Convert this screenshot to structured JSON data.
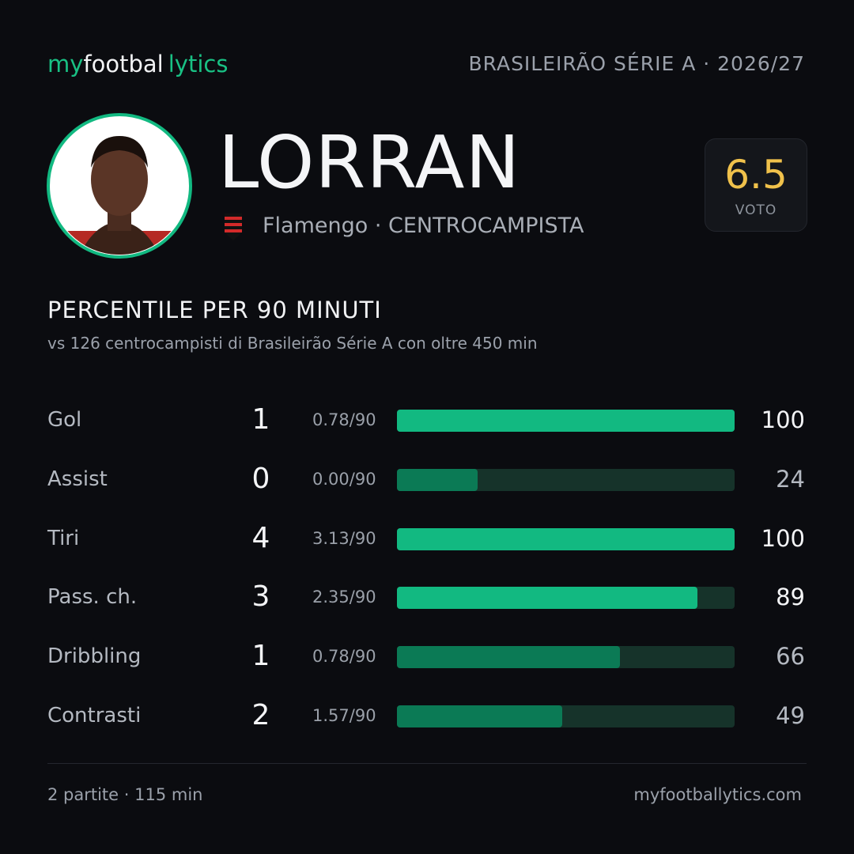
{
  "header": {
    "brand": [
      "my",
      "footbal",
      "lytics"
    ],
    "league": "BRASILEIRÃO SÉRIE A · 2026/27"
  },
  "player": {
    "name": "LORRAN",
    "club_role": "Flamengo · CENTROCAMPISTA",
    "rating": 6.5,
    "rating_label": "VOTO"
  },
  "section": {
    "title": "PERCENTILE PER 90 MINUTI",
    "subtitle": "vs 126 centrocampisti di Brasileirão Série A con oltre 450 min"
  },
  "stats": {
    "xlim": [
      0,
      100
    ],
    "track_color": "#16332a",
    "rows": [
      {
        "label": "Gol",
        "total": 1,
        "per90": "0.78/90",
        "percentile": 100,
        "color": "#12b981"
      },
      {
        "label": "Assist",
        "total": 0,
        "per90": "0.00/90",
        "percentile": 24,
        "color": "#0b7a55"
      },
      {
        "label": "Tiri",
        "total": 4,
        "per90": "3.13/90",
        "percentile": 100,
        "color": "#12b981"
      },
      {
        "label": "Pass. ch.",
        "total": 3,
        "per90": "2.35/90",
        "percentile": 89,
        "color": "#12b981"
      },
      {
        "label": "Dribbling",
        "total": 1,
        "per90": "0.78/90",
        "percentile": 66,
        "color": "#0b7a55"
      },
      {
        "label": "Contrasti",
        "total": 2,
        "per90": "1.57/90",
        "percentile": 49,
        "color": "#0b7a55"
      }
    ]
  },
  "footer": {
    "matches": "2 partite · 115 min",
    "site": "myfootballytics.com"
  }
}
